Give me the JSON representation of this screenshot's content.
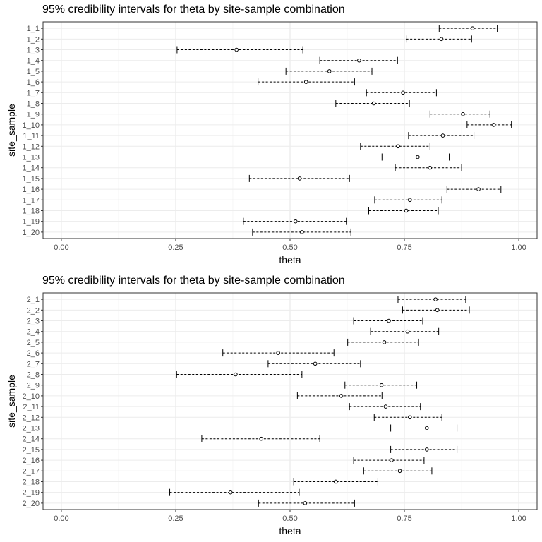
{
  "chart_data": [
    {
      "type": "interval",
      "title": "95% credibility intervals for theta by site-sample combination",
      "xlabel": "theta",
      "ylabel": "site_sample",
      "xlim": [
        -0.04,
        1.04
      ],
      "x_ticks": [
        "0.00",
        "0.25",
        "0.50",
        "0.75",
        "1.00"
      ],
      "x_tick_values": [
        0,
        0.25,
        0.5,
        0.75,
        1.0
      ],
      "grid": true,
      "categories": [
        "1_1",
        "1_2",
        "1_3",
        "1_4",
        "1_5",
        "1_6",
        "1_7",
        "1_8",
        "1_9",
        "1_10",
        "1_11",
        "1_12",
        "1_13",
        "1_14",
        "1_15",
        "1_16",
        "1_17",
        "1_18",
        "1_19",
        "1_20"
      ],
      "lower": [
        0.826,
        0.754,
        0.253,
        0.565,
        0.491,
        0.43,
        0.667,
        0.6,
        0.806,
        0.887,
        0.759,
        0.654,
        0.701,
        0.73,
        0.411,
        0.843,
        0.685,
        0.672,
        0.398,
        0.418
      ],
      "mean": [
        0.899,
        0.831,
        0.383,
        0.651,
        0.586,
        0.535,
        0.747,
        0.683,
        0.878,
        0.945,
        0.834,
        0.736,
        0.779,
        0.806,
        0.521,
        0.912,
        0.762,
        0.754,
        0.512,
        0.526
      ],
      "upper": [
        0.953,
        0.897,
        0.528,
        0.735,
        0.679,
        0.641,
        0.82,
        0.761,
        0.937,
        0.984,
        0.902,
        0.806,
        0.848,
        0.875,
        0.63,
        0.961,
        0.832,
        0.824,
        0.623,
        0.633
      ]
    },
    {
      "type": "interval",
      "title": "95% credibility intervals for theta by site-sample combination",
      "xlabel": "theta",
      "ylabel": "site_sample",
      "xlim": [
        -0.04,
        1.04
      ],
      "x_ticks": [
        "0.00",
        "0.25",
        "0.50",
        "0.75",
        "1.00"
      ],
      "x_tick_values": [
        0,
        0.25,
        0.5,
        0.75,
        1.0
      ],
      "grid": true,
      "categories": [
        "2_1",
        "2_2",
        "2_3",
        "2_4",
        "2_5",
        "2_6",
        "2_7",
        "2_8",
        "2_9",
        "2_10",
        "2_11",
        "2_12",
        "2_13",
        "2_14",
        "2_15",
        "2_16",
        "2_17",
        "2_18",
        "2_19",
        "2_20"
      ],
      "lower": [
        0.736,
        0.746,
        0.639,
        0.676,
        0.626,
        0.353,
        0.452,
        0.252,
        0.62,
        0.516,
        0.63,
        0.684,
        0.72,
        0.307,
        0.72,
        0.639,
        0.661,
        0.508,
        0.237,
        0.431
      ],
      "mean": [
        0.818,
        0.822,
        0.716,
        0.757,
        0.706,
        0.474,
        0.555,
        0.381,
        0.7,
        0.612,
        0.709,
        0.762,
        0.799,
        0.437,
        0.799,
        0.722,
        0.74,
        0.6,
        0.37,
        0.533
      ],
      "upper": [
        0.884,
        0.892,
        0.79,
        0.825,
        0.781,
        0.596,
        0.654,
        0.526,
        0.777,
        0.701,
        0.785,
        0.832,
        0.865,
        0.565,
        0.865,
        0.793,
        0.81,
        0.692,
        0.52,
        0.641
      ]
    }
  ]
}
